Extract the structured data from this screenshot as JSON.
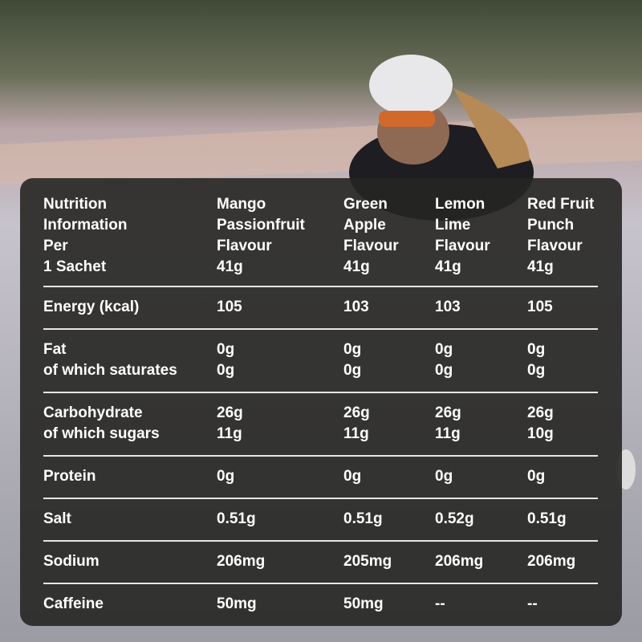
{
  "table": {
    "header": [
      [
        "Nutrition",
        "Information",
        "Per",
        "1 Sachet"
      ],
      [
        "Mango",
        "Passionfruit",
        "Flavour",
        "41g"
      ],
      [
        "Green",
        "Apple",
        "Flavour",
        "41g"
      ],
      [
        "Lemon",
        "Lime",
        "Flavour",
        "41g"
      ],
      [
        "Red Fruit",
        "Punch",
        "Flavour",
        "41g"
      ]
    ],
    "rows": [
      [
        [
          "Energy (kcal)"
        ],
        [
          "105"
        ],
        [
          "103"
        ],
        [
          "103"
        ],
        [
          "105"
        ]
      ],
      [
        [
          "Fat",
          "of which saturates"
        ],
        [
          "0g",
          "0g"
        ],
        [
          "0g",
          "0g"
        ],
        [
          "0g",
          "0g"
        ],
        [
          "0g",
          "0g"
        ]
      ],
      [
        [
          "Carbohydrate",
          "of which sugars"
        ],
        [
          "26g",
          "11g"
        ],
        [
          "26g",
          "11g"
        ],
        [
          "26g",
          "11g"
        ],
        [
          "26g",
          "10g"
        ]
      ],
      [
        [
          "Protein"
        ],
        [
          "0g"
        ],
        [
          "0g"
        ],
        [
          "0g"
        ],
        [
          "0g"
        ]
      ],
      [
        [
          "Salt"
        ],
        [
          "0.51g"
        ],
        [
          "0.51g"
        ],
        [
          "0.52g"
        ],
        [
          "0.51g"
        ]
      ],
      [
        [
          "Sodium"
        ],
        [
          "206mg"
        ],
        [
          "205mg"
        ],
        [
          "206mg"
        ],
        [
          "206mg"
        ]
      ],
      [
        [
          "Caffeine"
        ],
        [
          "50mg"
        ],
        [
          "50mg"
        ],
        [
          "--"
        ],
        [
          "--"
        ]
      ]
    ]
  }
}
